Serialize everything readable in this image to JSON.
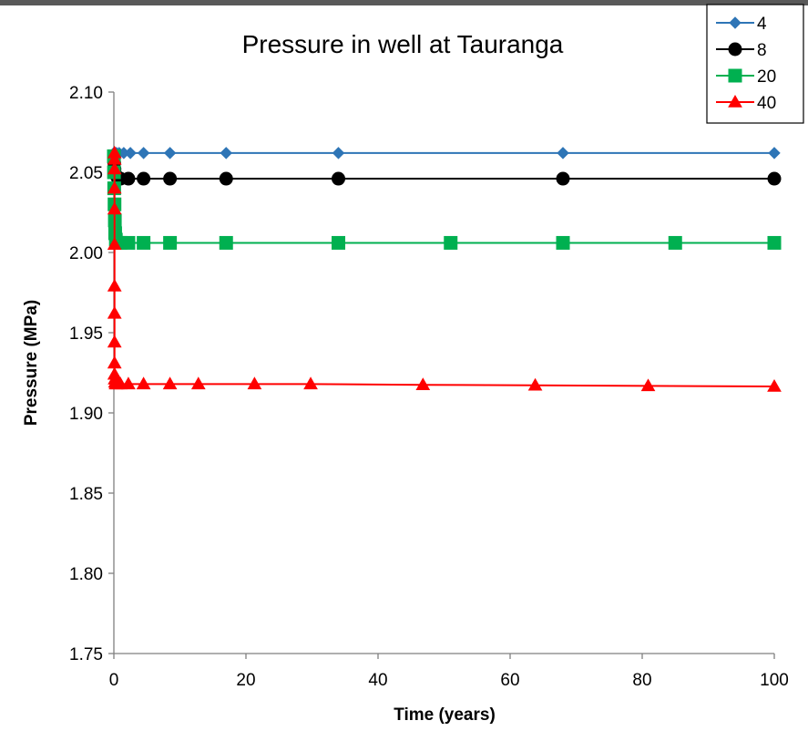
{
  "chart_data": {
    "type": "scatter",
    "title": "Pressure in well at Tauranga",
    "xlabel": "Time (years)",
    "ylabel": "Pressure (MPa)",
    "xlim": [
      0,
      100
    ],
    "ylim": [
      1.75,
      2.1
    ],
    "xticks": [
      "0",
      "20",
      "40",
      "60",
      "80",
      "100"
    ],
    "yticks": [
      "1.75",
      "1.80",
      "1.85",
      "1.90",
      "1.95",
      "2.00",
      "2.05",
      "2.10"
    ],
    "grid": false,
    "legend_position": "top-right",
    "series": [
      {
        "name": "4",
        "color": "#2E75B6",
        "marker": "diamond",
        "x": [
          0,
          0.02,
          0.05,
          0.1,
          0.2,
          0.4,
          0.8,
          1.5,
          2.5,
          4.5,
          8.5,
          17,
          34,
          68,
          100
        ],
        "y": [
          2.062,
          2.062,
          2.062,
          2.062,
          2.062,
          2.062,
          2.062,
          2.062,
          2.062,
          2.062,
          2.062,
          2.062,
          2.062,
          2.062,
          2.062
        ]
      },
      {
        "name": "8",
        "color": "#000000",
        "marker": "circle",
        "x": [
          0,
          0.02,
          0.05,
          0.1,
          0.2,
          0.5,
          1.0,
          2.2,
          4.5,
          8.5,
          17,
          34,
          68,
          100
        ],
        "y": [
          2.06,
          2.058,
          2.056,
          2.052,
          2.049,
          2.047,
          2.046,
          2.046,
          2.046,
          2.046,
          2.046,
          2.046,
          2.046,
          2.046
        ]
      },
      {
        "name": "20",
        "color": "#00B050",
        "marker": "square",
        "x": [
          0,
          0.02,
          0.05,
          0.1,
          0.15,
          0.2,
          0.3,
          0.5,
          1.0,
          2.2,
          4.5,
          8.5,
          17,
          34,
          51,
          68,
          85,
          100
        ],
        "y": [
          2.06,
          2.05,
          2.04,
          2.03,
          2.02,
          2.012,
          2.008,
          2.006,
          2.006,
          2.006,
          2.006,
          2.006,
          2.006,
          2.006,
          2.006,
          2.006,
          2.006,
          2.006
        ]
      },
      {
        "name": "40",
        "color": "#FF0000",
        "marker": "triangle",
        "x": [
          0.1,
          0.1,
          0.1,
          0.1,
          0.1,
          0.1,
          0.1,
          0.1,
          0.1,
          0.1,
          0.1,
          0.15,
          0.2,
          0.3,
          0.5,
          1.0,
          2.2,
          4.5,
          8.5,
          12.8,
          21.3,
          29.8,
          46.8,
          63.8,
          80.9,
          100
        ],
        "y": [
          2.062,
          2.058,
          2.052,
          2.04,
          2.027,
          2.005,
          1.979,
          1.962,
          1.944,
          1.931,
          1.924,
          1.921,
          1.919,
          1.918,
          1.918,
          1.918,
          1.918,
          1.918,
          1.918,
          1.918,
          1.918,
          1.918,
          1.9175,
          1.9172,
          1.9168,
          1.9165
        ]
      }
    ]
  }
}
